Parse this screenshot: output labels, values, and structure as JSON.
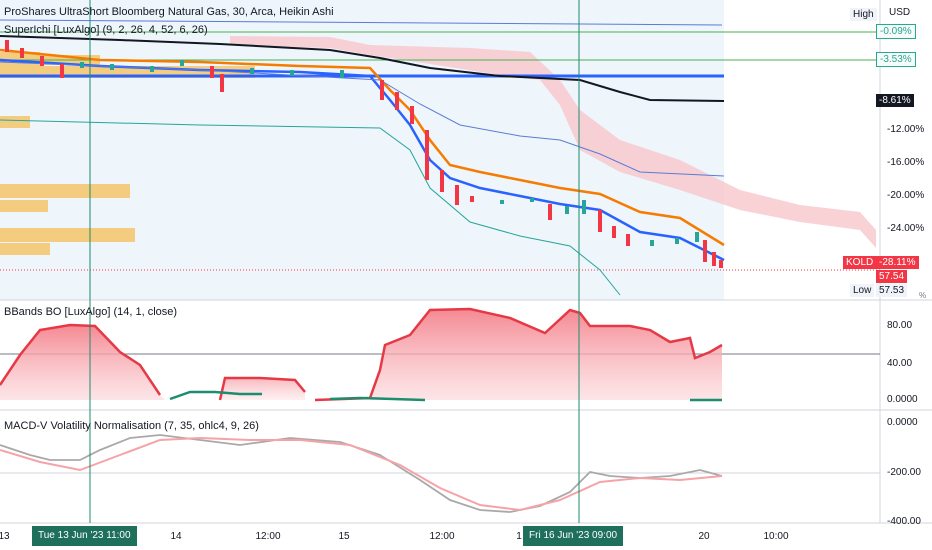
{
  "header": {
    "symbol_line": "ProShares UltraShort Bloomberg Natural Gas, 30, Arca, Heikin Ashi",
    "indicator1": "SuperIchi [LuxAlgo] (9, 2, 26, 4, 52, 6, 26)",
    "indicator2": "BBands BO [LuxAlgo] (14, 1, close)",
    "indicator3": "MACD-V Volatility Normalisation (7, 35, ohlc4, 9, 26)"
  },
  "price_axis": {
    "high_label": "High",
    "currency": "USD",
    "ticks": [
      "-12.00%",
      "-16.00%",
      "-20.00%",
      "-24.00%"
    ],
    "tags": {
      "a": "-0.09%",
      "b": "-3.53%",
      "c": "-8.61%"
    },
    "symbol_tag": "KOLD",
    "symbol_change": "-28.11%",
    "last_price": "57.54",
    "low_label": "Low",
    "low_value": "57.53",
    "percent_sign": "%"
  },
  "bb_axis": {
    "ticks": [
      "80.00",
      "40.00",
      "0.0000"
    ]
  },
  "macd_axis": {
    "ticks": [
      "0.0000",
      "-200.00",
      "-400.00"
    ]
  },
  "time_axis": {
    "labels": [
      "13",
      "14",
      "12:00",
      "15",
      "12:00",
      "1",
      "20",
      "10:00"
    ],
    "highlight_left": "Tue 13 Jun '23   11:00",
    "highlight_right": "Fri 16 Jun '23   09:00"
  },
  "colors": {
    "up": "#26a69a",
    "down": "#f23645",
    "orange": "#f57c00",
    "blue": "#2962ff",
    "black": "#131722",
    "cloud": "#f7c7cc",
    "volume": "#f5c56a",
    "macd": "#a9a9a9",
    "signal": "#f5a3a8",
    "crosshair": "#1e8c6e"
  }
}
